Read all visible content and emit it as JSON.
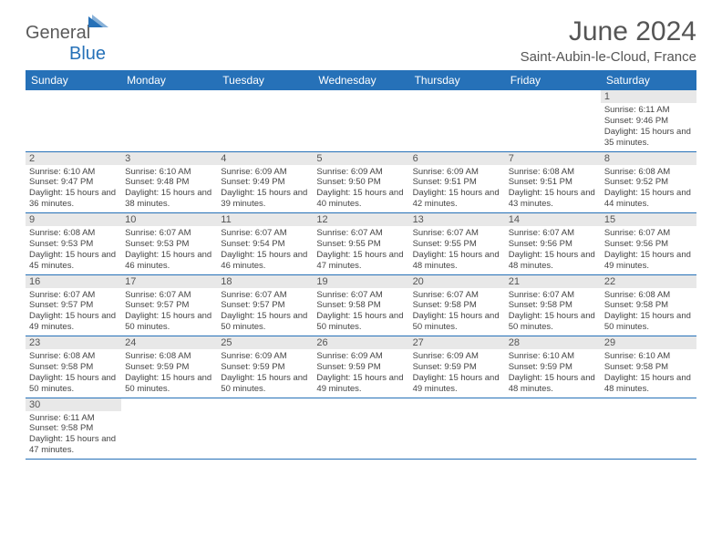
{
  "logo": {
    "text1": "General",
    "text2": "Blue"
  },
  "header": {
    "month": "June 2024",
    "location": "Saint-Aubin-le-Cloud, France"
  },
  "columns": [
    "Sunday",
    "Monday",
    "Tuesday",
    "Wednesday",
    "Thursday",
    "Friday",
    "Saturday"
  ],
  "colors": {
    "accent": "#2671b8",
    "grayRow": "#e8e8e8",
    "text": "#444"
  },
  "weeks": [
    [
      null,
      null,
      null,
      null,
      null,
      null,
      {
        "n": "1",
        "sunrise": "6:11 AM",
        "sunset": "9:46 PM",
        "dl": "15 hours and 35 minutes."
      }
    ],
    [
      {
        "n": "2",
        "sunrise": "6:10 AM",
        "sunset": "9:47 PM",
        "dl": "15 hours and 36 minutes."
      },
      {
        "n": "3",
        "sunrise": "6:10 AM",
        "sunset": "9:48 PM",
        "dl": "15 hours and 38 minutes."
      },
      {
        "n": "4",
        "sunrise": "6:09 AM",
        "sunset": "9:49 PM",
        "dl": "15 hours and 39 minutes."
      },
      {
        "n": "5",
        "sunrise": "6:09 AM",
        "sunset": "9:50 PM",
        "dl": "15 hours and 40 minutes."
      },
      {
        "n": "6",
        "sunrise": "6:09 AM",
        "sunset": "9:51 PM",
        "dl": "15 hours and 42 minutes."
      },
      {
        "n": "7",
        "sunrise": "6:08 AM",
        "sunset": "9:51 PM",
        "dl": "15 hours and 43 minutes."
      },
      {
        "n": "8",
        "sunrise": "6:08 AM",
        "sunset": "9:52 PM",
        "dl": "15 hours and 44 minutes."
      }
    ],
    [
      {
        "n": "9",
        "sunrise": "6:08 AM",
        "sunset": "9:53 PM",
        "dl": "15 hours and 45 minutes."
      },
      {
        "n": "10",
        "sunrise": "6:07 AM",
        "sunset": "9:53 PM",
        "dl": "15 hours and 46 minutes."
      },
      {
        "n": "11",
        "sunrise": "6:07 AM",
        "sunset": "9:54 PM",
        "dl": "15 hours and 46 minutes."
      },
      {
        "n": "12",
        "sunrise": "6:07 AM",
        "sunset": "9:55 PM",
        "dl": "15 hours and 47 minutes."
      },
      {
        "n": "13",
        "sunrise": "6:07 AM",
        "sunset": "9:55 PM",
        "dl": "15 hours and 48 minutes."
      },
      {
        "n": "14",
        "sunrise": "6:07 AM",
        "sunset": "9:56 PM",
        "dl": "15 hours and 48 minutes."
      },
      {
        "n": "15",
        "sunrise": "6:07 AM",
        "sunset": "9:56 PM",
        "dl": "15 hours and 49 minutes."
      }
    ],
    [
      {
        "n": "16",
        "sunrise": "6:07 AM",
        "sunset": "9:57 PM",
        "dl": "15 hours and 49 minutes."
      },
      {
        "n": "17",
        "sunrise": "6:07 AM",
        "sunset": "9:57 PM",
        "dl": "15 hours and 50 minutes."
      },
      {
        "n": "18",
        "sunrise": "6:07 AM",
        "sunset": "9:57 PM",
        "dl": "15 hours and 50 minutes."
      },
      {
        "n": "19",
        "sunrise": "6:07 AM",
        "sunset": "9:58 PM",
        "dl": "15 hours and 50 minutes."
      },
      {
        "n": "20",
        "sunrise": "6:07 AM",
        "sunset": "9:58 PM",
        "dl": "15 hours and 50 minutes."
      },
      {
        "n": "21",
        "sunrise": "6:07 AM",
        "sunset": "9:58 PM",
        "dl": "15 hours and 50 minutes."
      },
      {
        "n": "22",
        "sunrise": "6:08 AM",
        "sunset": "9:58 PM",
        "dl": "15 hours and 50 minutes."
      }
    ],
    [
      {
        "n": "23",
        "sunrise": "6:08 AM",
        "sunset": "9:58 PM",
        "dl": "15 hours and 50 minutes."
      },
      {
        "n": "24",
        "sunrise": "6:08 AM",
        "sunset": "9:59 PM",
        "dl": "15 hours and 50 minutes."
      },
      {
        "n": "25",
        "sunrise": "6:09 AM",
        "sunset": "9:59 PM",
        "dl": "15 hours and 50 minutes."
      },
      {
        "n": "26",
        "sunrise": "6:09 AM",
        "sunset": "9:59 PM",
        "dl": "15 hours and 49 minutes."
      },
      {
        "n": "27",
        "sunrise": "6:09 AM",
        "sunset": "9:59 PM",
        "dl": "15 hours and 49 minutes."
      },
      {
        "n": "28",
        "sunrise": "6:10 AM",
        "sunset": "9:59 PM",
        "dl": "15 hours and 48 minutes."
      },
      {
        "n": "29",
        "sunrise": "6:10 AM",
        "sunset": "9:58 PM",
        "dl": "15 hours and 48 minutes."
      }
    ],
    [
      {
        "n": "30",
        "sunrise": "6:11 AM",
        "sunset": "9:58 PM",
        "dl": "15 hours and 47 minutes."
      },
      null,
      null,
      null,
      null,
      null,
      null
    ]
  ],
  "labels": {
    "sunrise": "Sunrise: ",
    "sunset": "Sunset: ",
    "daylight": "Daylight: "
  }
}
